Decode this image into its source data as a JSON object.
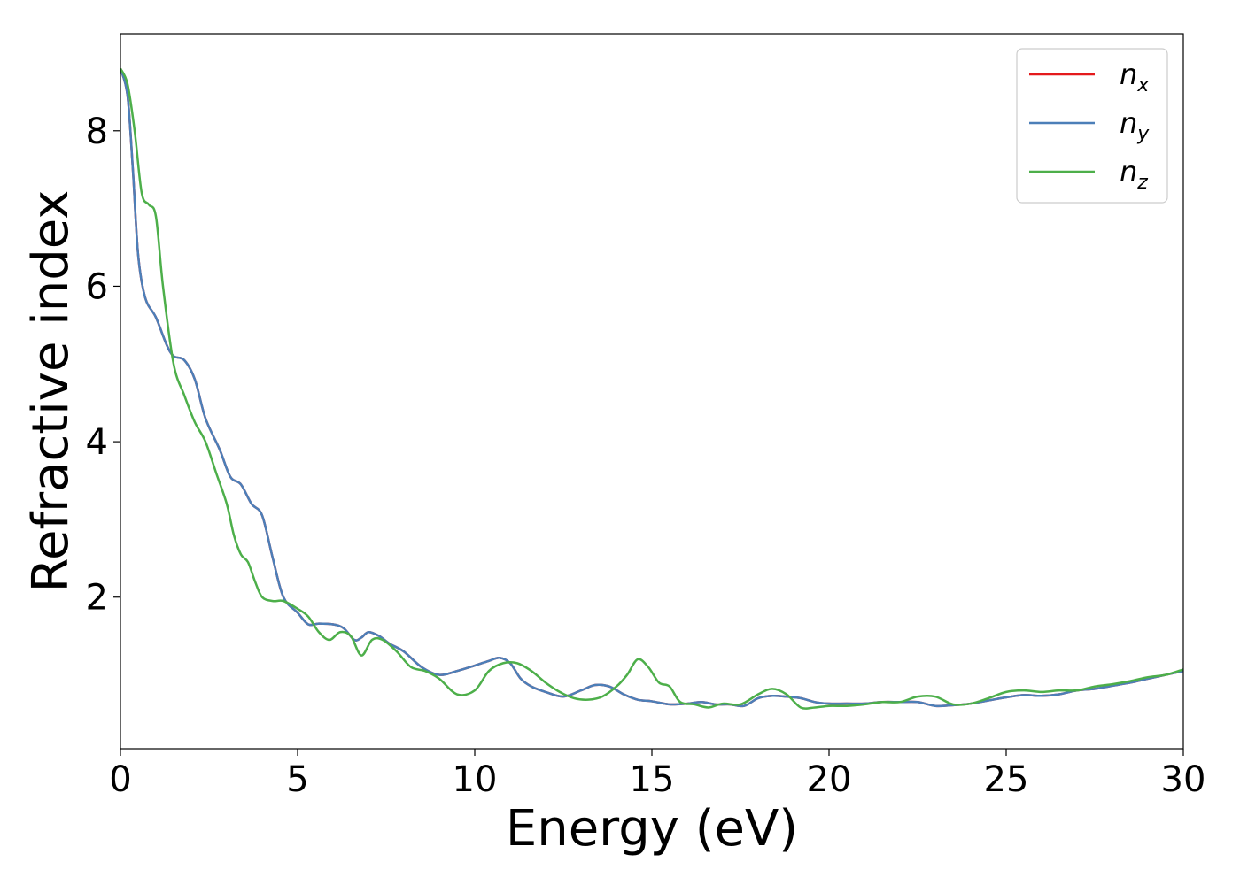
{
  "chart_data": {
    "type": "line",
    "title": "",
    "xlabel": "Energy (eV)",
    "ylabel": "Refractive index",
    "xlim": [
      0,
      30
    ],
    "ylim": [
      0.05,
      9.25
    ],
    "xticks": [
      0,
      5,
      10,
      15,
      20,
      25,
      30
    ],
    "yticks": [
      2,
      4,
      6,
      8
    ],
    "grid": false,
    "legend_position": "top-right",
    "series": [
      {
        "name": "n",
        "name_sub": "x",
        "color": "#e41a1c",
        "x": [
          0,
          0.2,
          0.35,
          0.5,
          0.7,
          1.0,
          1.3,
          1.5,
          1.8,
          2.1,
          2.4,
          2.8,
          3.1,
          3.4,
          3.7,
          4.0,
          4.3,
          4.6,
          5.0,
          5.3,
          5.6,
          6.0,
          6.3,
          6.6,
          6.8,
          7.0,
          7.3,
          7.6,
          8.0,
          8.5,
          9.0,
          9.5,
          10.0,
          10.4,
          10.7,
          11.0,
          11.3,
          11.6,
          12.0,
          12.5,
          13.0,
          13.4,
          13.8,
          14.2,
          14.6,
          15.0,
          15.5,
          16.0,
          16.4,
          16.8,
          17.2,
          17.6,
          18.0,
          18.4,
          18.8,
          19.2,
          19.6,
          20.0,
          20.5,
          21.0,
          21.5,
          22.0,
          22.5,
          23.0,
          23.5,
          24.0,
          24.5,
          25.0,
          25.5,
          26.0,
          26.5,
          27.0,
          27.5,
          28.0,
          28.5,
          29.0,
          29.5,
          30.0
        ],
        "y": [
          8.8,
          8.45,
          7.5,
          6.4,
          5.85,
          5.6,
          5.25,
          5.1,
          5.05,
          4.8,
          4.3,
          3.9,
          3.55,
          3.45,
          3.2,
          3.05,
          2.5,
          2.0,
          1.8,
          1.65,
          1.66,
          1.65,
          1.6,
          1.45,
          1.48,
          1.55,
          1.5,
          1.4,
          1.3,
          1.1,
          1.0,
          1.05,
          1.12,
          1.18,
          1.22,
          1.15,
          0.95,
          0.85,
          0.78,
          0.72,
          0.8,
          0.87,
          0.85,
          0.75,
          0.68,
          0.66,
          0.62,
          0.63,
          0.65,
          0.62,
          0.62,
          0.6,
          0.7,
          0.73,
          0.72,
          0.7,
          0.65,
          0.63,
          0.63,
          0.63,
          0.65,
          0.65,
          0.65,
          0.6,
          0.61,
          0.63,
          0.67,
          0.71,
          0.74,
          0.73,
          0.75,
          0.8,
          0.82,
          0.86,
          0.9,
          0.95,
          1.0,
          1.05
        ]
      },
      {
        "name": "n",
        "name_sub": "y",
        "color": "#4c7fb8",
        "x": [
          0,
          0.2,
          0.35,
          0.5,
          0.7,
          1.0,
          1.3,
          1.5,
          1.8,
          2.1,
          2.4,
          2.8,
          3.1,
          3.4,
          3.7,
          4.0,
          4.3,
          4.6,
          5.0,
          5.3,
          5.6,
          6.0,
          6.3,
          6.6,
          6.8,
          7.0,
          7.3,
          7.6,
          8.0,
          8.5,
          9.0,
          9.5,
          10.0,
          10.4,
          10.7,
          11.0,
          11.3,
          11.6,
          12.0,
          12.5,
          13.0,
          13.4,
          13.8,
          14.2,
          14.6,
          15.0,
          15.5,
          16.0,
          16.4,
          16.8,
          17.2,
          17.6,
          18.0,
          18.4,
          18.8,
          19.2,
          19.6,
          20.0,
          20.5,
          21.0,
          21.5,
          22.0,
          22.5,
          23.0,
          23.5,
          24.0,
          24.5,
          25.0,
          25.5,
          26.0,
          26.5,
          27.0,
          27.5,
          28.0,
          28.5,
          29.0,
          29.5,
          30.0
        ],
        "y": [
          8.8,
          8.45,
          7.5,
          6.4,
          5.85,
          5.6,
          5.25,
          5.1,
          5.05,
          4.8,
          4.3,
          3.9,
          3.55,
          3.45,
          3.2,
          3.05,
          2.5,
          2.0,
          1.8,
          1.65,
          1.66,
          1.65,
          1.6,
          1.45,
          1.48,
          1.55,
          1.5,
          1.4,
          1.3,
          1.1,
          1.0,
          1.05,
          1.12,
          1.18,
          1.22,
          1.15,
          0.95,
          0.85,
          0.78,
          0.72,
          0.8,
          0.87,
          0.85,
          0.75,
          0.68,
          0.66,
          0.62,
          0.63,
          0.65,
          0.62,
          0.62,
          0.6,
          0.7,
          0.73,
          0.72,
          0.7,
          0.65,
          0.63,
          0.63,
          0.63,
          0.65,
          0.65,
          0.65,
          0.6,
          0.61,
          0.63,
          0.67,
          0.71,
          0.74,
          0.73,
          0.75,
          0.8,
          0.82,
          0.86,
          0.9,
          0.95,
          1.0,
          1.05
        ]
      },
      {
        "name": "n",
        "name_sub": "z",
        "color": "#4daf4a",
        "x": [
          0,
          0.2,
          0.4,
          0.6,
          0.8,
          1.0,
          1.2,
          1.5,
          1.8,
          2.1,
          2.4,
          2.7,
          3.0,
          3.2,
          3.4,
          3.6,
          3.8,
          4.0,
          4.3,
          4.6,
          5.0,
          5.3,
          5.6,
          5.9,
          6.2,
          6.5,
          6.8,
          7.1,
          7.4,
          7.8,
          8.2,
          8.6,
          9.0,
          9.5,
          10.0,
          10.4,
          10.8,
          11.2,
          11.6,
          12.0,
          12.4,
          12.8,
          13.2,
          13.6,
          14.0,
          14.3,
          14.6,
          14.9,
          15.2,
          15.5,
          15.8,
          16.2,
          16.6,
          17.0,
          17.5,
          18.0,
          18.4,
          18.8,
          19.2,
          19.6,
          20.0,
          20.5,
          21.0,
          21.5,
          22.0,
          22.5,
          23.0,
          23.5,
          24.0,
          24.5,
          25.0,
          25.5,
          26.0,
          26.5,
          27.0,
          27.5,
          28.0,
          28.5,
          29.0,
          29.5,
          30.0
        ],
        "y": [
          8.8,
          8.6,
          8.0,
          7.2,
          7.05,
          6.9,
          6.0,
          5.0,
          4.6,
          4.25,
          4.0,
          3.6,
          3.2,
          2.8,
          2.55,
          2.45,
          2.2,
          2.0,
          1.95,
          1.95,
          1.85,
          1.75,
          1.55,
          1.45,
          1.55,
          1.5,
          1.25,
          1.45,
          1.45,
          1.3,
          1.1,
          1.05,
          0.95,
          0.75,
          0.8,
          1.05,
          1.15,
          1.15,
          1.05,
          0.9,
          0.78,
          0.7,
          0.68,
          0.72,
          0.85,
          1.0,
          1.2,
          1.1,
          0.9,
          0.85,
          0.65,
          0.62,
          0.58,
          0.63,
          0.62,
          0.75,
          0.82,
          0.75,
          0.58,
          0.58,
          0.6,
          0.6,
          0.62,
          0.65,
          0.65,
          0.72,
          0.72,
          0.62,
          0.63,
          0.7,
          0.78,
          0.8,
          0.78,
          0.8,
          0.8,
          0.85,
          0.88,
          0.92,
          0.97,
          1.0,
          1.07
        ]
      }
    ]
  }
}
